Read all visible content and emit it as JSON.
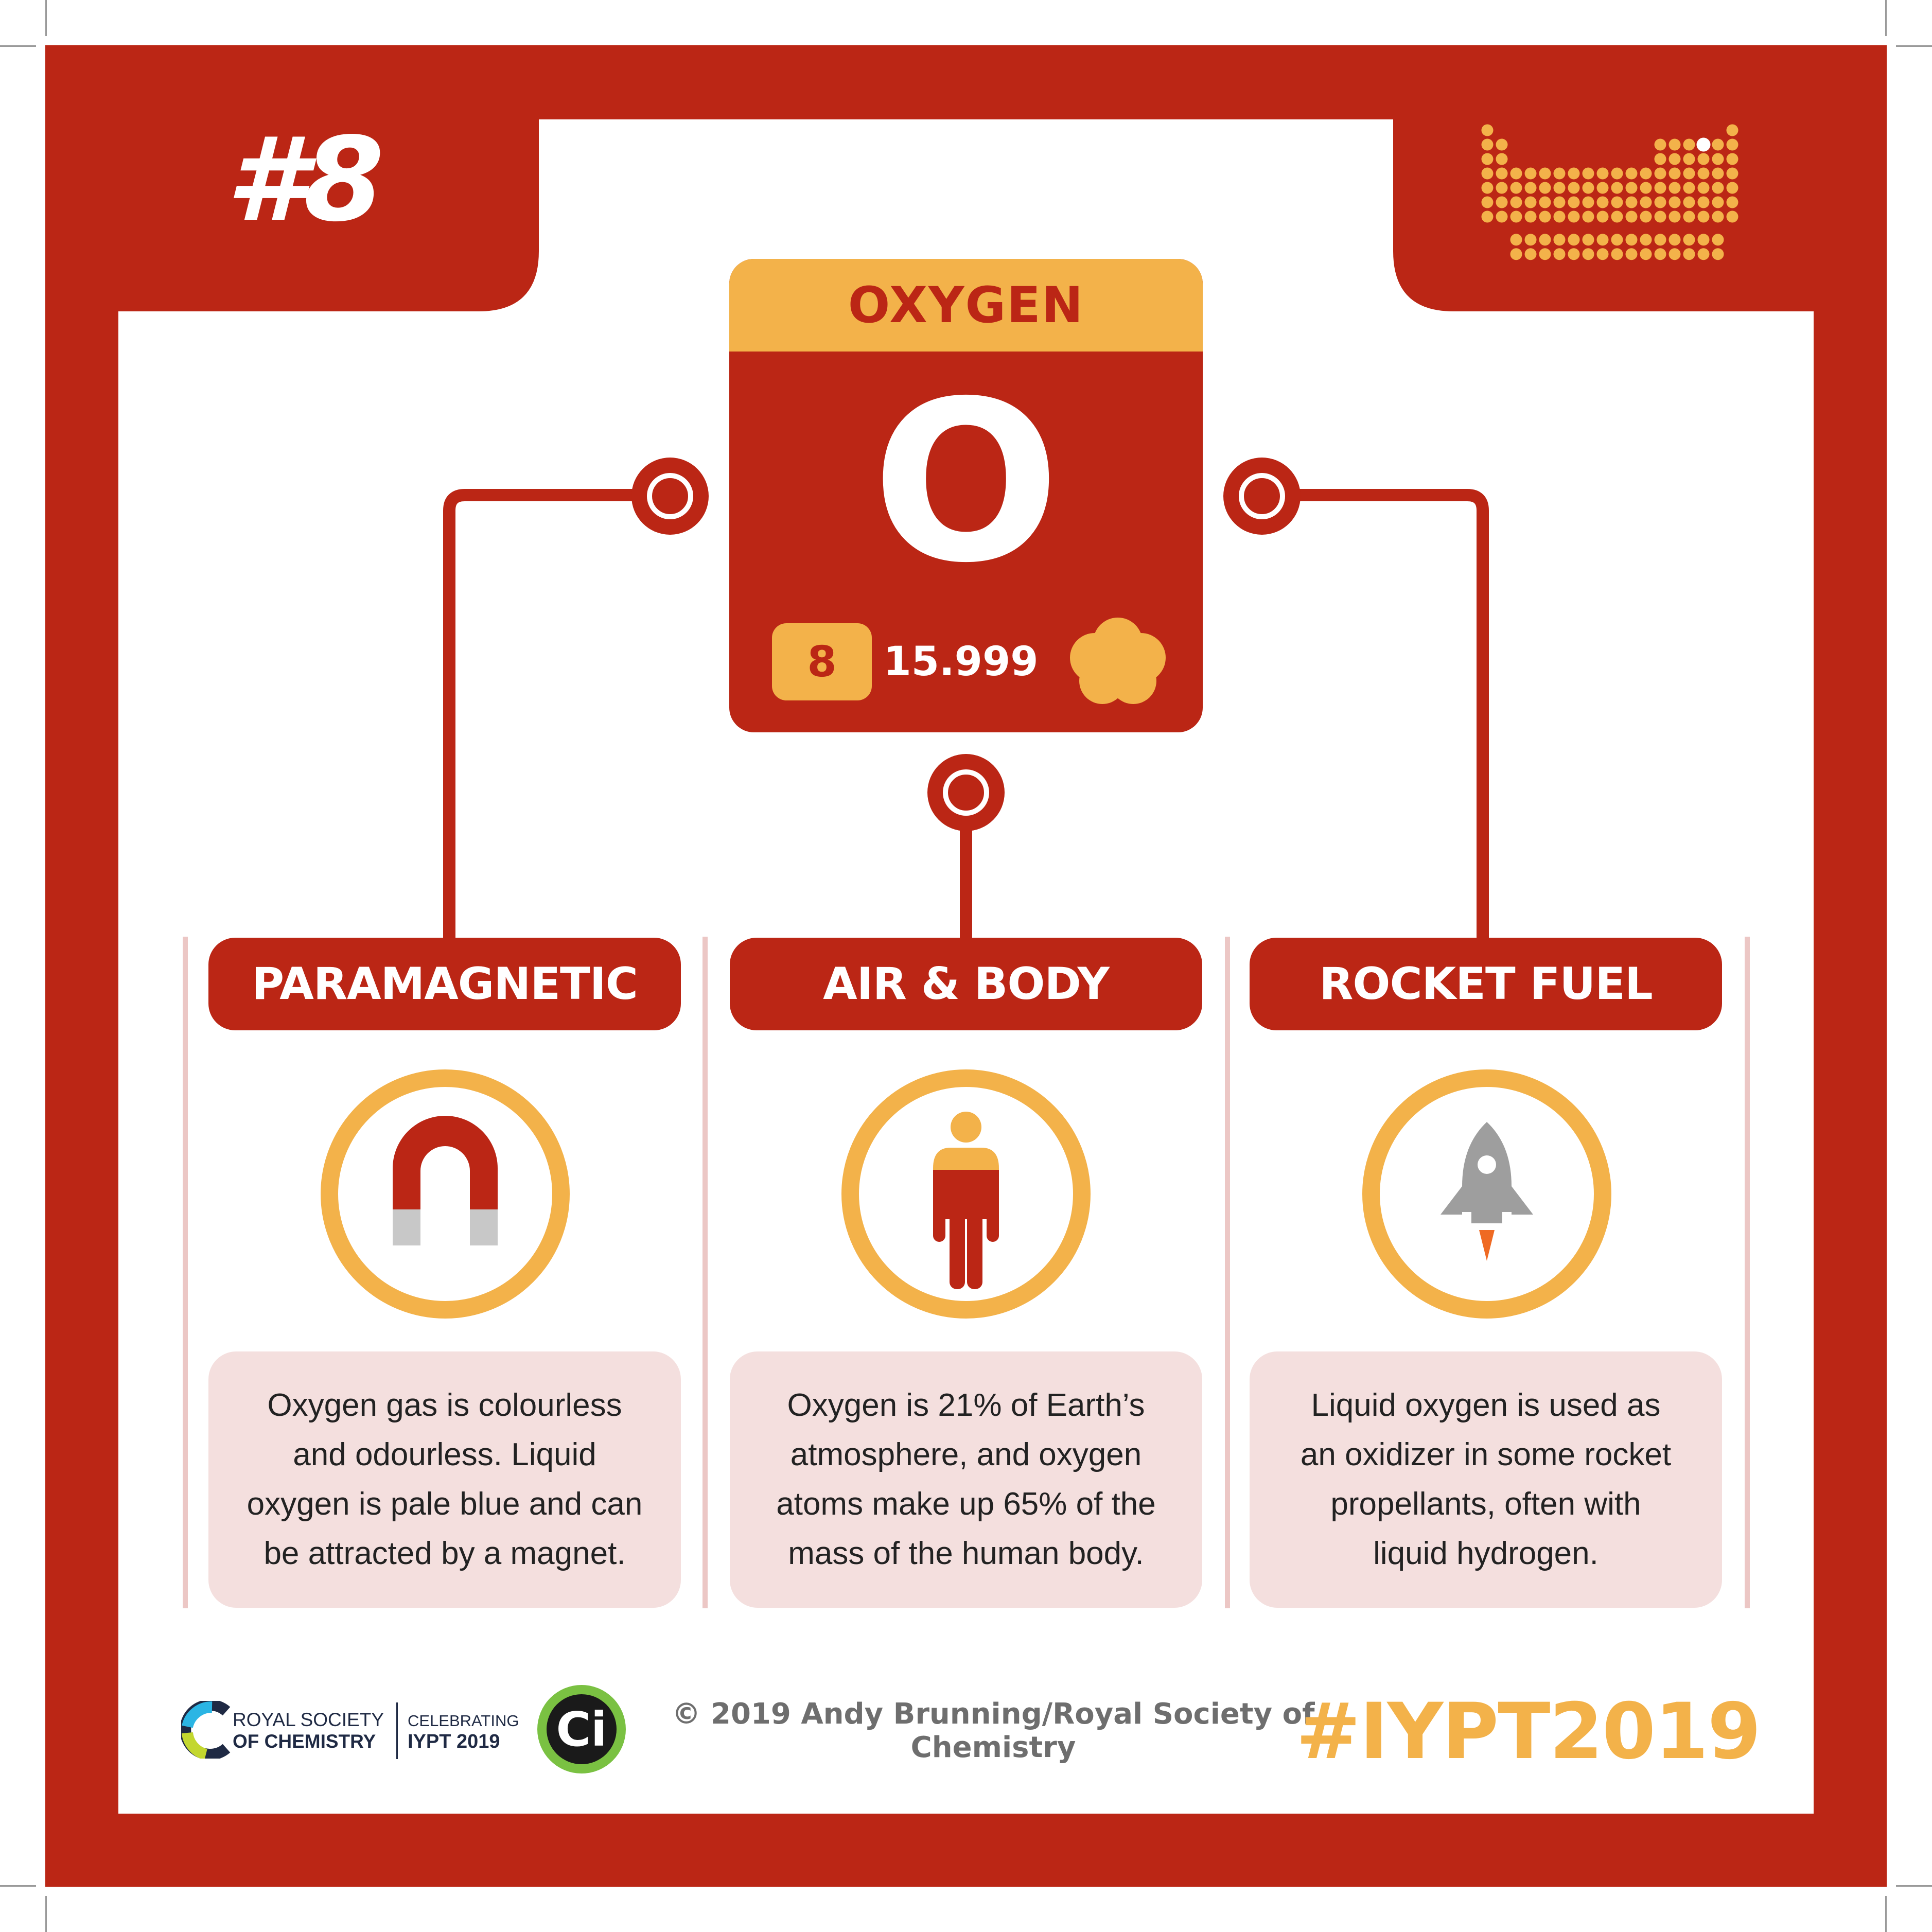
{
  "colors": {
    "brand_red": "#bb2615",
    "accent_orange": "#f3b24a",
    "panel_pink": "#f4dfde",
    "text_dark": "#222222"
  },
  "header": {
    "number_tag": "#8",
    "periodic_table_icon": "periodic-table-icon"
  },
  "element": {
    "name": "OXYGEN",
    "symbol": "O",
    "atomic_number": "8",
    "atomic_mass": "15.999",
    "state_icon": "gas-cloud-icon"
  },
  "facts": [
    {
      "title": "PARAMAGNETIC",
      "icon": "magnet-icon",
      "lines": [
        "Oxygen gas is colourless",
        "and odourless. Liquid",
        "oxygen is pale blue and can",
        "be attracted by a magnet."
      ]
    },
    {
      "title": "AIR & BODY",
      "icon": "human-body-icon",
      "lines": [
        "Oxygen is 21% of Earth’s",
        "atmosphere, and oxygen",
        "atoms make up 65% of the",
        "mass of the human body."
      ]
    },
    {
      "title": "ROCKET FUEL",
      "icon": "rocket-icon",
      "lines": [
        "Liquid oxygen is used as",
        "an oxidizer in some rocket",
        "propellants, often with",
        "liquid hydrogen."
      ]
    }
  ],
  "footer": {
    "rsc_line1": "ROYAL SOCIETY",
    "rsc_line2": "OF CHEMISTRY",
    "iypt_line1": "CELEBRATING",
    "iypt_line2": "IYPT 2019",
    "ci_logo_text": "Ci",
    "copyright": "© 2019 Andy Brunning/Royal Society of Chemistry",
    "hashtag": "#IYPT2019"
  }
}
